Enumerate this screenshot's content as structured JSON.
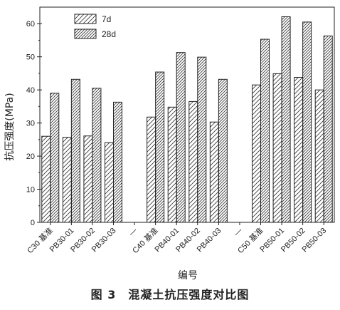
{
  "figure": {
    "caption": "图 3　混凝土抗压强度对比图"
  },
  "chart_data": {
    "type": "bar",
    "categories": [
      "C30 基准",
      "PB30-01",
      "PB30-02",
      "PB30-03",
      "—",
      "C40 基准",
      "PB40-01",
      "PB40-02",
      "PB40-03",
      "—",
      "C50 基准",
      "PB50-01",
      "PB50-02",
      "PB50-03"
    ],
    "series": [
      {
        "name": "7d",
        "values": [
          26.0,
          25.7,
          26.1,
          24.1,
          null,
          31.8,
          34.8,
          36.5,
          30.3,
          null,
          41.5,
          44.9,
          43.8,
          40.0
        ]
      },
      {
        "name": "28d",
        "values": [
          39.0,
          43.2,
          40.5,
          36.3,
          null,
          45.4,
          51.3,
          49.9,
          43.2,
          null,
          55.3,
          62.1,
          60.5,
          56.3
        ]
      }
    ],
    "xlabel": "编号",
    "ylabel": "抗压强度(MPa)",
    "ylim": [
      0,
      65
    ],
    "yticks": [
      0,
      10,
      20,
      30,
      40,
      50,
      60
    ],
    "legend": "top-left",
    "pattern": "diagonal-hatch",
    "grid": false
  }
}
